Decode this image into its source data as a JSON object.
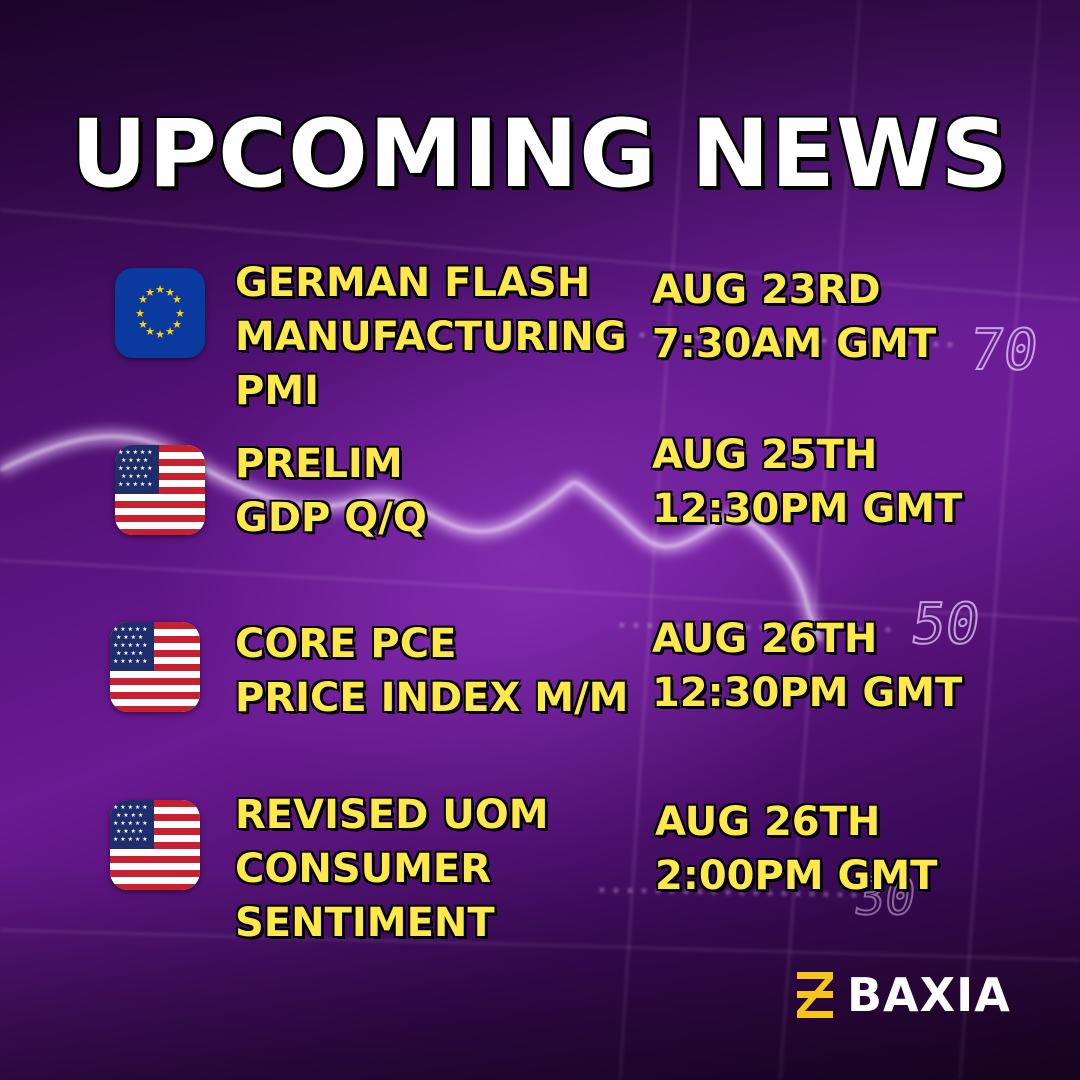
{
  "title": "UPCOMING NEWS",
  "background_labels": [
    "70",
    "50",
    "30"
  ],
  "colors": {
    "background": "#5a1480",
    "title_text": "#ffffff",
    "event_text": "#ffe94a",
    "outline": "#000000",
    "logo_accent": "#f5c518"
  },
  "events": [
    {
      "flag": "eu-flag-icon",
      "name_lines": [
        "GERMAN FLASH",
        "MANUFACTURING",
        "PMI"
      ],
      "date": "AUG 23RD",
      "time": "7:30AM GMT"
    },
    {
      "flag": "us-flag-icon",
      "name_lines": [
        "PRELIM",
        "GDP Q/Q"
      ],
      "date": "AUG 25TH",
      "time": "12:30PM GMT"
    },
    {
      "flag": "us-flag-icon",
      "name_lines": [
        "CORE PCE",
        "PRICE INDEX M/M"
      ],
      "date": "AUG 26TH",
      "time": "12:30PM GMT"
    },
    {
      "flag": "us-flag-icon",
      "name_lines": [
        "REVISED UOM",
        "CONSUMER",
        "SENTIMENT"
      ],
      "date": "AUG 26TH",
      "time": "2:00PM GMT"
    }
  ],
  "brand": {
    "name": "BAXIA",
    "logo_icon": "baxia-logo-icon"
  }
}
